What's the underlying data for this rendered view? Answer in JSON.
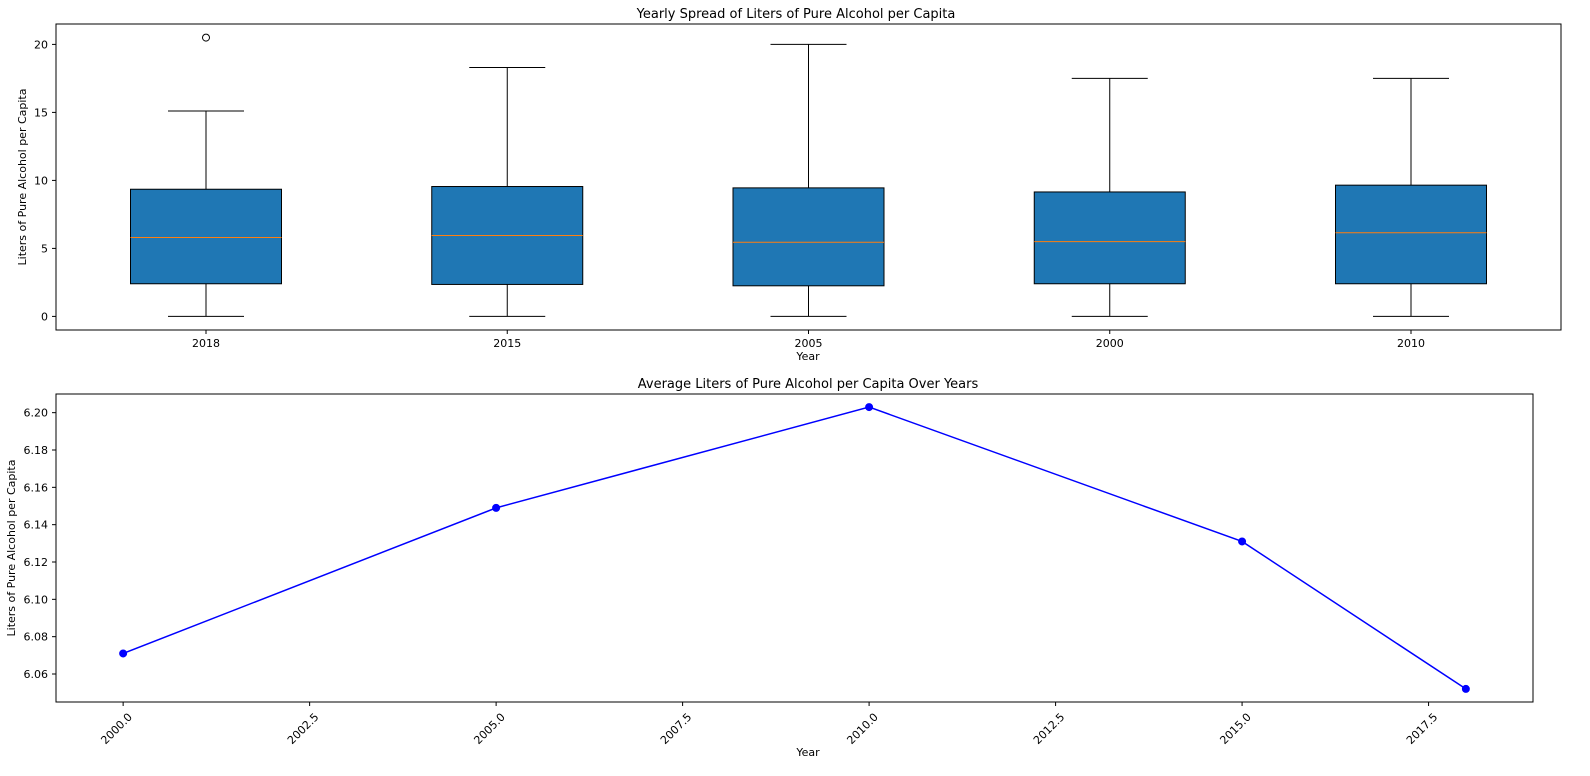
{
  "chart_data": [
    {
      "type": "box",
      "title": "Yearly Spread of Liters of Pure Alcohol per Capita",
      "xlabel": "Year",
      "ylabel": "Liters of Pure Alcohol per Capita",
      "ylim": [
        -1,
        21.5
      ],
      "yticks": [
        0,
        5,
        10,
        15,
        20
      ],
      "categories": [
        "2018",
        "2015",
        "2005",
        "2000",
        "2010"
      ],
      "boxes": [
        {
          "category": "2018",
          "whisker_low": 0.0,
          "q1": 2.4,
          "median": 5.8,
          "q3": 9.35,
          "whisker_high": 15.1,
          "outliers": [
            20.5
          ]
        },
        {
          "category": "2015",
          "whisker_low": 0.0,
          "q1": 2.35,
          "median": 5.95,
          "q3": 9.55,
          "whisker_high": 18.3,
          "outliers": []
        },
        {
          "category": "2005",
          "whisker_low": 0.0,
          "q1": 2.25,
          "median": 5.45,
          "q3": 9.45,
          "whisker_high": 20.0,
          "outliers": []
        },
        {
          "category": "2000",
          "whisker_low": 0.0,
          "q1": 2.4,
          "median": 5.5,
          "q3": 9.15,
          "whisker_high": 17.5,
          "outliers": []
        },
        {
          "category": "2010",
          "whisker_low": 0.0,
          "q1": 2.4,
          "median": 6.15,
          "q3": 9.65,
          "whisker_high": 17.5,
          "outliers": []
        }
      ],
      "box_color": "#1f77b4",
      "median_color": "#ff7f0e"
    },
    {
      "type": "line",
      "title": "Average Liters of Pure Alcohol per Capita Over Years",
      "xlabel": "Year",
      "ylabel": "Liters of Pure Alcohol per Capita",
      "x": [
        2000,
        2005,
        2010,
        2015,
        2018
      ],
      "y": [
        6.071,
        6.149,
        6.203,
        6.131,
        6.052
      ],
      "xlim": [
        1999.1,
        2018.9
      ],
      "ylim": [
        6.045,
        6.21
      ],
      "xticks": [
        2000.0,
        2002.5,
        2005.0,
        2007.5,
        2010.0,
        2012.5,
        2015.0,
        2017.5
      ],
      "xtick_labels": [
        "2000.0",
        "2002.5",
        "2005.0",
        "2007.5",
        "2010.0",
        "2012.5",
        "2015.0",
        "2017.5"
      ],
      "yticks": [
        6.06,
        6.08,
        6.1,
        6.12,
        6.14,
        6.16,
        6.18,
        6.2
      ],
      "ytick_labels": [
        "6.06",
        "6.08",
        "6.10",
        "6.12",
        "6.14",
        "6.16",
        "6.18",
        "6.20"
      ],
      "line_color": "#0000ff",
      "marker": "circle"
    }
  ]
}
